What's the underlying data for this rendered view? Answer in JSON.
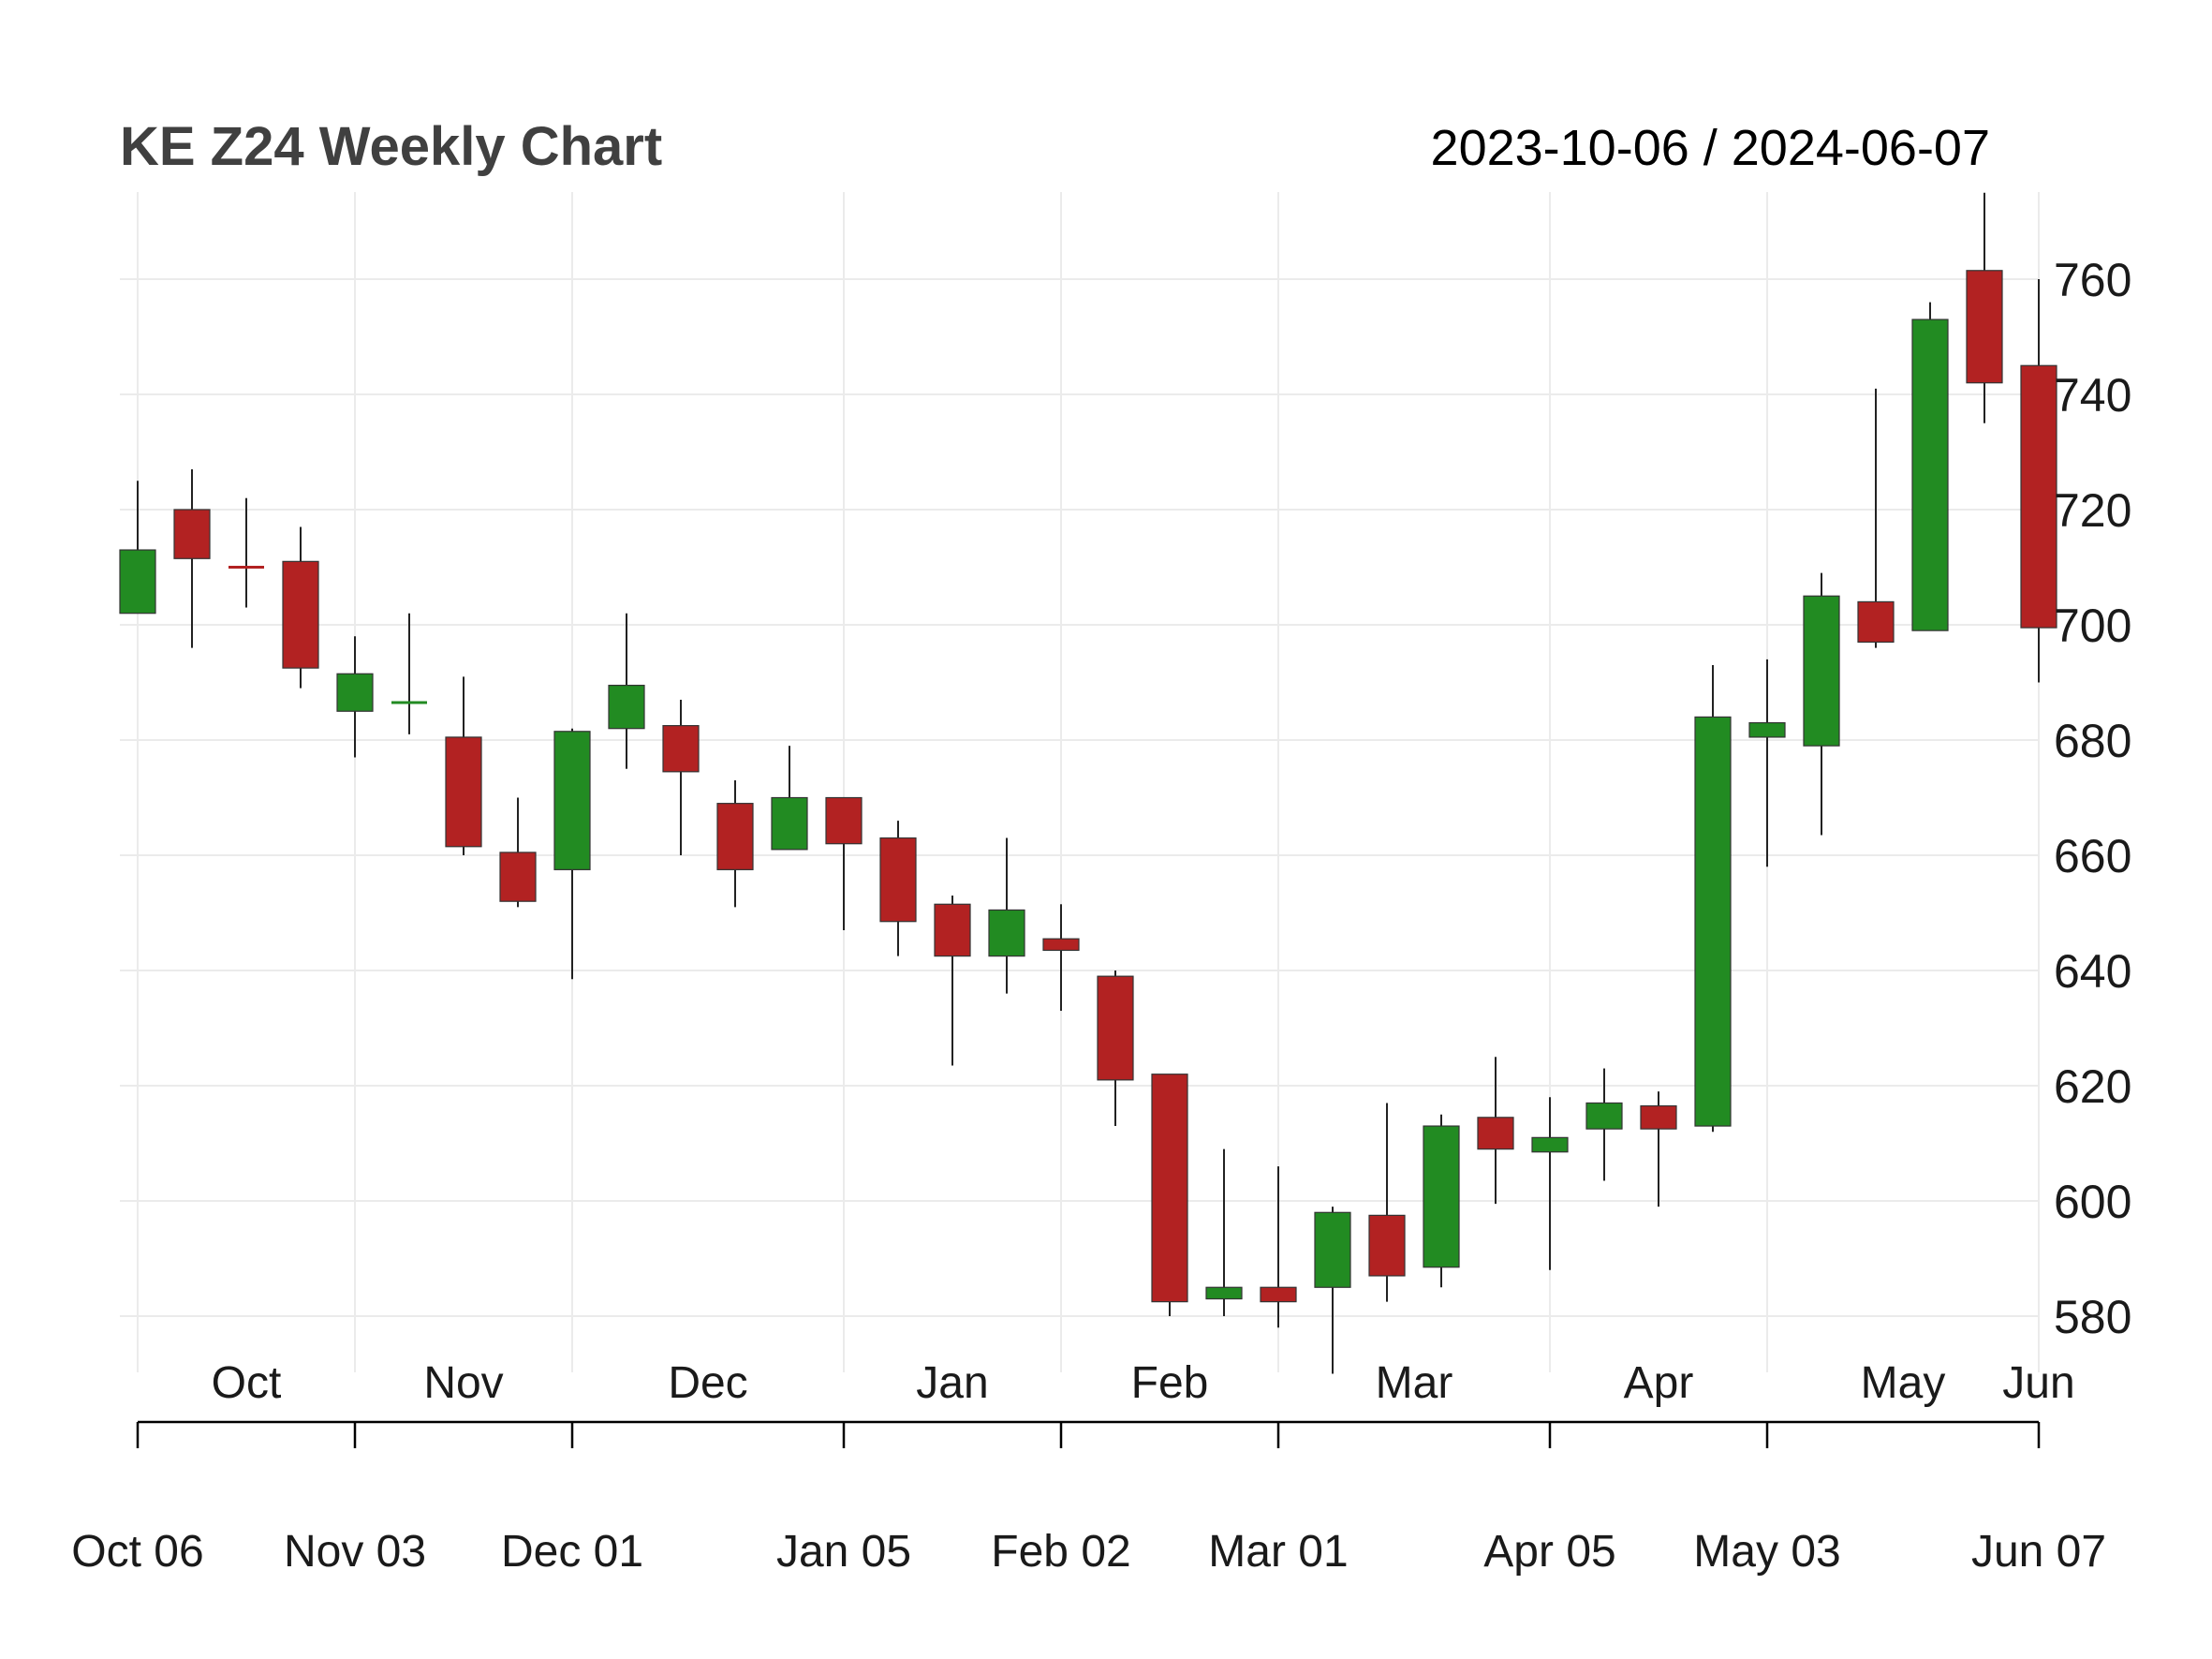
{
  "chart_data": {
    "type": "candlestick",
    "title": "KE Z24 Weekly Chart",
    "date_range": "2023-10-06 / 2024-06-07",
    "ylim": [
      570,
      775
    ],
    "y_ticks": [
      580,
      600,
      620,
      640,
      660,
      680,
      700,
      720,
      740,
      760
    ],
    "y_axis_side": "right",
    "grid": true,
    "colors": {
      "up": "#228B22",
      "down": "#B22222"
    },
    "month_labels": [
      {
        "label": "Oct",
        "start": 0,
        "end": 4
      },
      {
        "label": "Nov",
        "start": 4,
        "end": 8
      },
      {
        "label": "Dec",
        "start": 8,
        "end": 13
      },
      {
        "label": "Jan",
        "start": 13,
        "end": 17
      },
      {
        "label": "Feb",
        "start": 17,
        "end": 21
      },
      {
        "label": "Mar",
        "start": 21,
        "end": 26
      },
      {
        "label": "Apr",
        "start": 26,
        "end": 30
      },
      {
        "label": "May",
        "start": 30,
        "end": 35
      },
      {
        "label": "Jun",
        "start": 35,
        "end": 35
      }
    ],
    "date_ticks": [
      {
        "label": "Oct 06",
        "index": 0
      },
      {
        "label": "Nov 03",
        "index": 4
      },
      {
        "label": "Dec 01",
        "index": 8
      },
      {
        "label": "Jan 05",
        "index": 13
      },
      {
        "label": "Feb 02",
        "index": 17
      },
      {
        "label": "Mar 01",
        "index": 21
      },
      {
        "label": "Apr 05",
        "index": 26
      },
      {
        "label": "May 03",
        "index": 30
      },
      {
        "label": "Jun 07",
        "index": 35
      }
    ],
    "candles": [
      {
        "date": "2023-10-06",
        "open": 702,
        "high": 725,
        "low": 702,
        "close": 713
      },
      {
        "date": "2023-10-13",
        "open": 720,
        "high": 727,
        "low": 696,
        "close": 711.5
      },
      {
        "date": "2023-10-20",
        "open": 710,
        "high": 722,
        "low": 703,
        "close": 709.5
      },
      {
        "date": "2023-10-27",
        "open": 711,
        "high": 717,
        "low": 689,
        "close": 692.5
      },
      {
        "date": "2023-11-03",
        "open": 685,
        "high": 698,
        "low": 677,
        "close": 691.5
      },
      {
        "date": "2023-11-10",
        "open": 686.5,
        "high": 702,
        "low": 681,
        "close": 686.5
      },
      {
        "date": "2023-11-17",
        "open": 680.5,
        "high": 691,
        "low": 660,
        "close": 661.5
      },
      {
        "date": "2023-11-24",
        "open": 660.5,
        "high": 670,
        "low": 651,
        "close": 652
      },
      {
        "date": "2023-12-01",
        "open": 657.5,
        "high": 682,
        "low": 638.5,
        "close": 681.5
      },
      {
        "date": "2023-12-08",
        "open": 682,
        "high": 702,
        "low": 675,
        "close": 689.5
      },
      {
        "date": "2023-12-15",
        "open": 682.5,
        "high": 687,
        "low": 660,
        "close": 674.5
      },
      {
        "date": "2023-12-22",
        "open": 669,
        "high": 673,
        "low": 651,
        "close": 657.5
      },
      {
        "date": "2023-12-29",
        "open": 661,
        "high": 679,
        "low": 661,
        "close": 670
      },
      {
        "date": "2024-01-05",
        "open": 670,
        "high": 670,
        "low": 647,
        "close": 662
      },
      {
        "date": "2024-01-12",
        "open": 663,
        "high": 666,
        "low": 642.5,
        "close": 648.5
      },
      {
        "date": "2024-01-19",
        "open": 651.5,
        "high": 653,
        "low": 623.5,
        "close": 642.5
      },
      {
        "date": "2024-01-26",
        "open": 642.5,
        "high": 663,
        "low": 636,
        "close": 650.5
      },
      {
        "date": "2024-02-02",
        "open": 645.5,
        "high": 651.5,
        "low": 633,
        "close": 643.5
      },
      {
        "date": "2024-02-09",
        "open": 639,
        "high": 640,
        "low": 613,
        "close": 621
      },
      {
        "date": "2024-02-16",
        "open": 622,
        "high": 622,
        "low": 580,
        "close": 582.5
      },
      {
        "date": "2024-02-23",
        "open": 583,
        "high": 609,
        "low": 580,
        "close": 585
      },
      {
        "date": "2024-03-01",
        "open": 585,
        "high": 606,
        "low": 578,
        "close": 582.5
      },
      {
        "date": "2024-03-08",
        "open": 585,
        "high": 599,
        "low": 570,
        "close": 598
      },
      {
        "date": "2024-03-15",
        "open": 597.5,
        "high": 617,
        "low": 582.5,
        "close": 587
      },
      {
        "date": "2024-03-22",
        "open": 588.5,
        "high": 615,
        "low": 585,
        "close": 613
      },
      {
        "date": "2024-03-29",
        "open": 614.5,
        "high": 625,
        "low": 599.5,
        "close": 609
      },
      {
        "date": "2024-04-05",
        "open": 608.5,
        "high": 618,
        "low": 588,
        "close": 611
      },
      {
        "date": "2024-04-12",
        "open": 612.5,
        "high": 623,
        "low": 603.5,
        "close": 617
      },
      {
        "date": "2024-04-19",
        "open": 616.5,
        "high": 619,
        "low": 599,
        "close": 612.5
      },
      {
        "date": "2024-04-26",
        "open": 613,
        "high": 693,
        "low": 612,
        "close": 684
      },
      {
        "date": "2024-05-03",
        "open": 680.5,
        "high": 694,
        "low": 658,
        "close": 683
      },
      {
        "date": "2024-05-10",
        "open": 679,
        "high": 709,
        "low": 663.5,
        "close": 705
      },
      {
        "date": "2024-05-17",
        "open": 704,
        "high": 741,
        "low": 696,
        "close": 697
      },
      {
        "date": "2024-05-24",
        "open": 699,
        "high": 756,
        "low": 699,
        "close": 753
      },
      {
        "date": "2024-05-31",
        "open": 761.5,
        "high": 775,
        "low": 735,
        "close": 742
      },
      {
        "date": "2024-06-07",
        "open": 745,
        "high": 760,
        "low": 690,
        "close": 699.5
      }
    ]
  }
}
